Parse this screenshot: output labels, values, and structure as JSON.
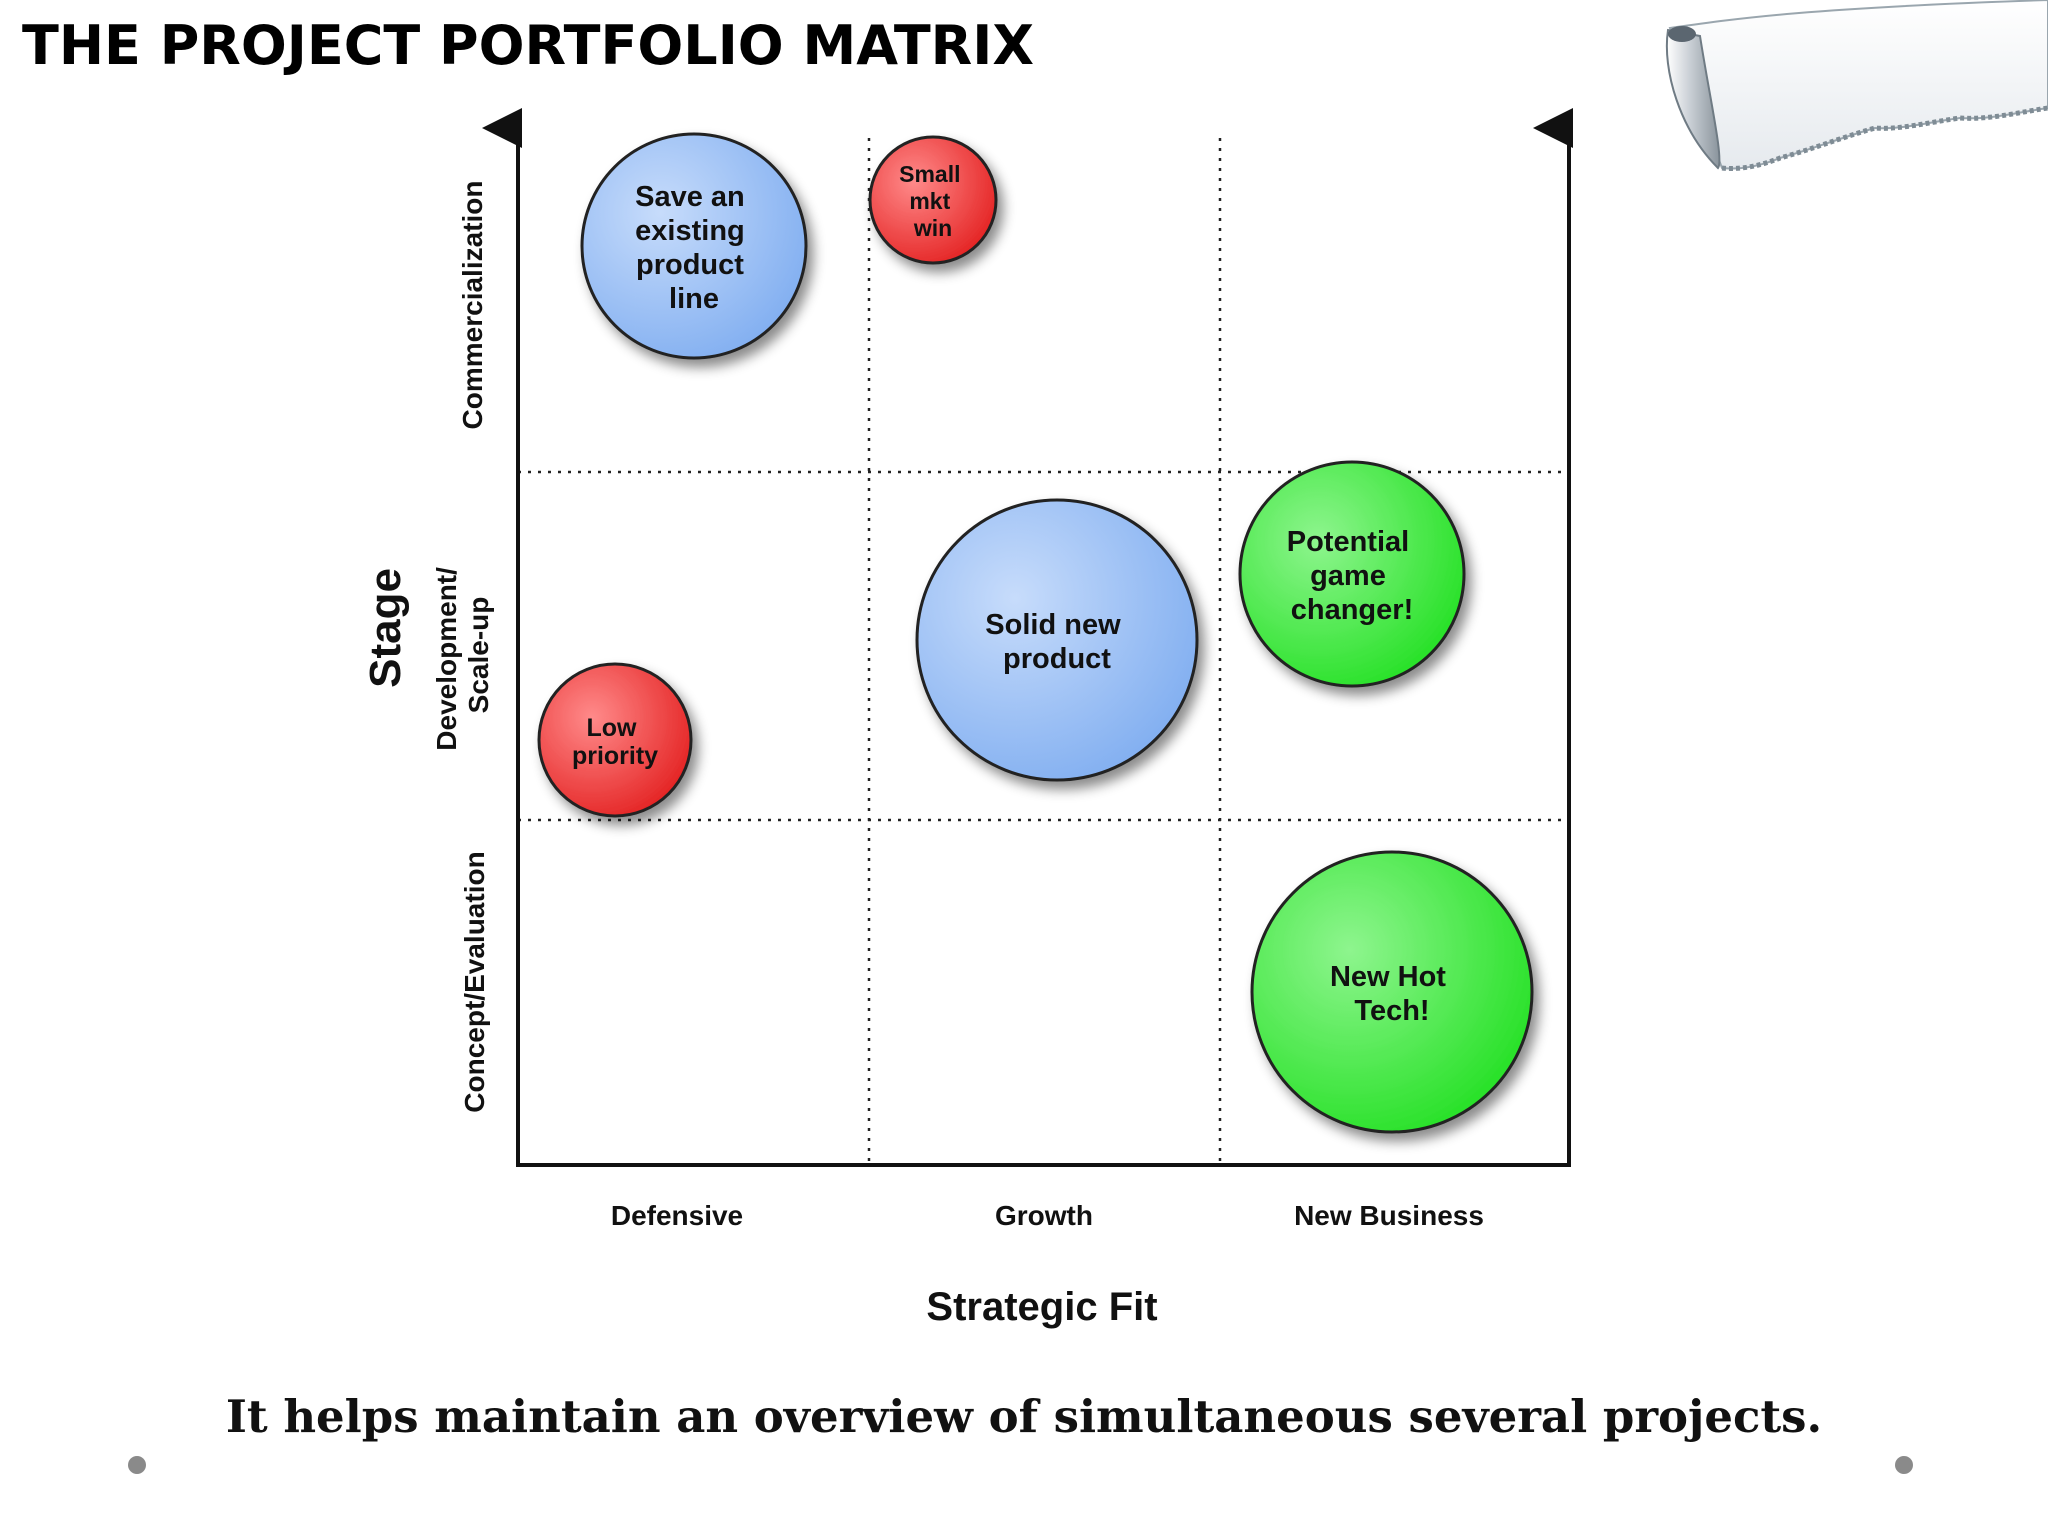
{
  "slide": {
    "title": "THE PROJECT PORTFOLIO MATRIX",
    "caption": "It helps maintain an overview of simultaneous several projects."
  },
  "matrix": {
    "y_axis_title": "Stage",
    "x_axis_title": "Strategic Fit",
    "y_categories": [
      {
        "lines": [
          "Commercialization"
        ]
      },
      {
        "lines": [
          "Development/",
          "Scale-up"
        ]
      },
      {
        "lines": [
          "Concept/Evaluation"
        ]
      }
    ],
    "x_categories": [
      "Defensive",
      "Growth",
      "New Business"
    ],
    "bubbles": [
      {
        "id": "save-existing-product-line",
        "lines": [
          "Save an",
          "existing",
          "product",
          "line"
        ],
        "color": "blue",
        "x_category": "Defensive",
        "y_category": "Commercialization"
      },
      {
        "id": "small-mkt-win",
        "lines": [
          "Small",
          "mkt",
          "win"
        ],
        "color": "red",
        "x_category": "Growth",
        "y_category": "Commercialization"
      },
      {
        "id": "solid-new-product",
        "lines": [
          "Solid new",
          "product"
        ],
        "color": "blue",
        "x_category": "Growth",
        "y_category": "Development/Scale-up"
      },
      {
        "id": "potential-game-changer",
        "lines": [
          "Potential",
          "game",
          "changer!"
        ],
        "color": "green",
        "x_category": "New Business",
        "y_category": "Development/Scale-up"
      },
      {
        "id": "low-priority",
        "lines": [
          "Low",
          "priority"
        ],
        "color": "red",
        "x_category": "Defensive",
        "y_category": "Development/Scale-up"
      },
      {
        "id": "new-hot-tech",
        "lines": [
          "New Hot",
          "Tech!"
        ],
        "color": "green",
        "x_category": "New Business",
        "y_category": "Concept/Evaluation"
      }
    ],
    "colors": {
      "blue": [
        "#c7dcfb",
        "#7fadf0"
      ],
      "red": [
        "#ff8a8a",
        "#e31f1f"
      ],
      "green": [
        "#8ef58e",
        "#22e022"
      ]
    }
  }
}
